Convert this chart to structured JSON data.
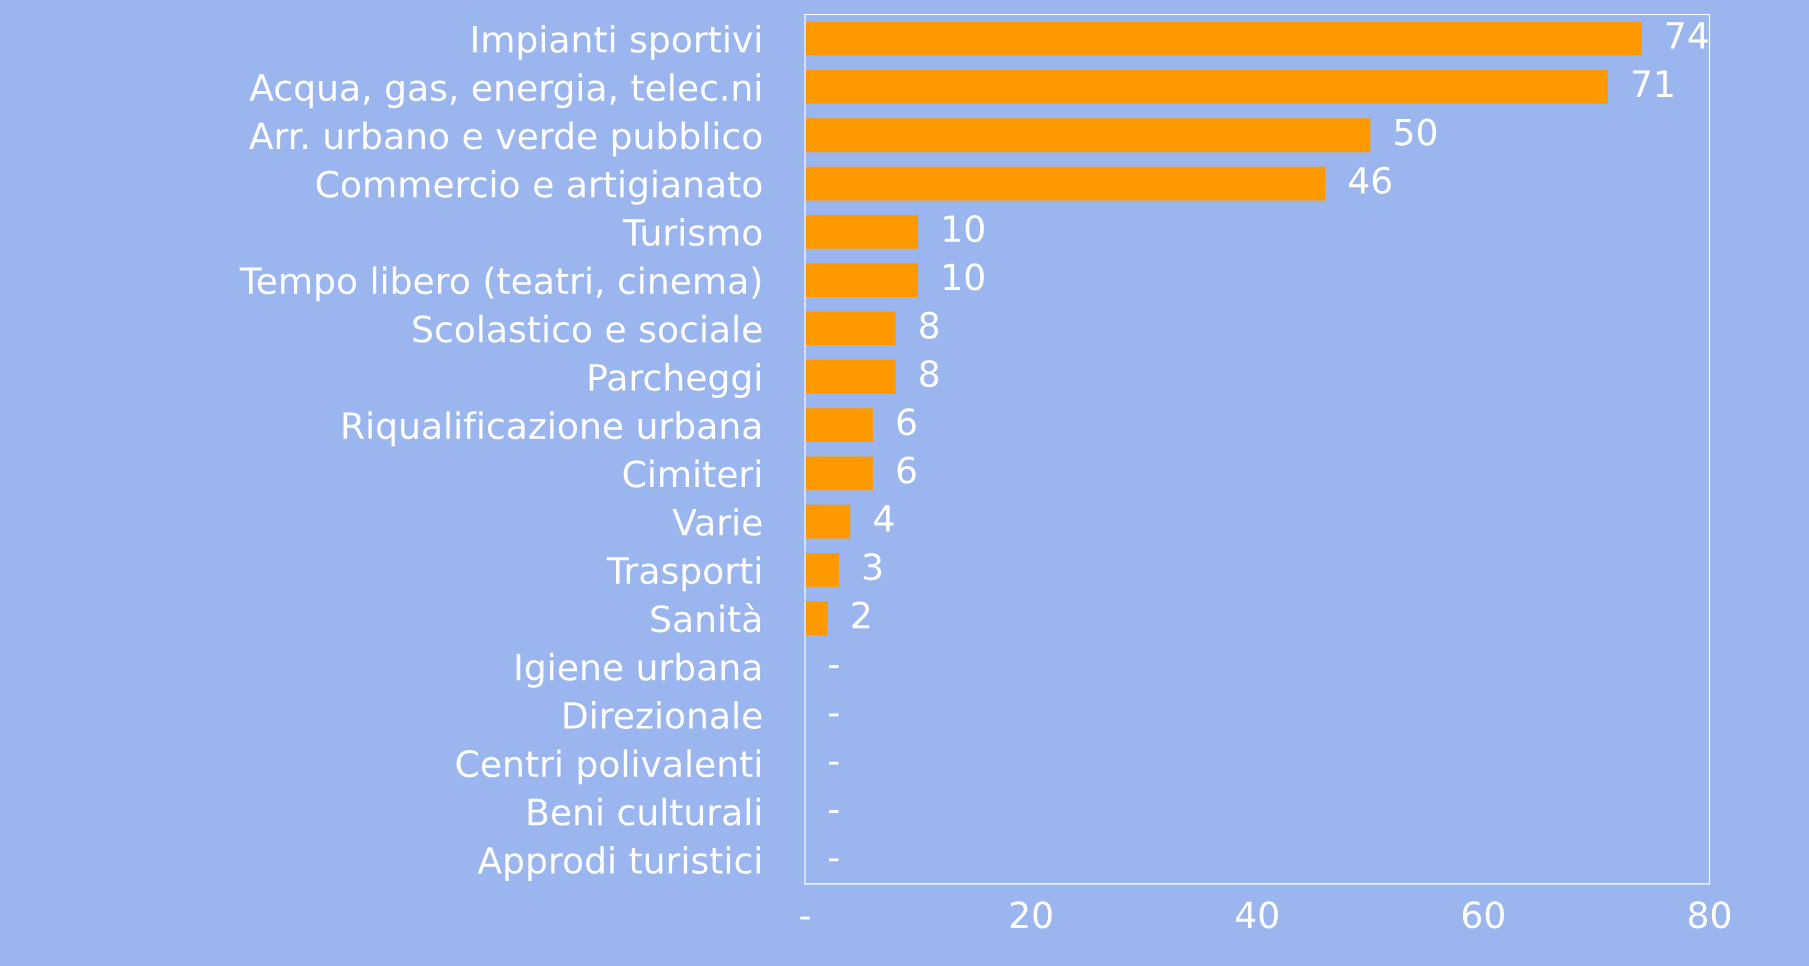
{
  "chart_data": {
    "type": "bar",
    "orientation": "horizontal",
    "categories": [
      "Impianti sportivi",
      "Acqua, gas, energia, telec.ni",
      "Arr. urbano e verde pubblico",
      "Commercio e artigianato",
      "Turismo",
      "Tempo libero (teatri, cinema)",
      "Scolastico e sociale",
      "Parcheggi",
      "Riqualificazione urbana",
      "Cimiteri",
      "Varie",
      "Trasporti",
      "Sanità",
      "Igiene urbana",
      "Direzionale",
      "Centri polivalenti",
      "Beni culturali",
      "Approdi turistici"
    ],
    "values": [
      74,
      71,
      50,
      46,
      10,
      10,
      8,
      8,
      6,
      6,
      4,
      3,
      2,
      0,
      0,
      0,
      0,
      0
    ],
    "value_labels": [
      "74",
      "71",
      "50",
      "46",
      "10",
      "10",
      "8",
      "8",
      "6",
      "6",
      "4",
      "3",
      "2",
      "-",
      "-",
      "-",
      "-",
      "-"
    ],
    "color": "#ff9900",
    "xlim": [
      0,
      80
    ],
    "xticks": [
      {
        "value": 0,
        "label": "-"
      },
      20,
      40,
      60,
      80
    ],
    "grid": false
  }
}
